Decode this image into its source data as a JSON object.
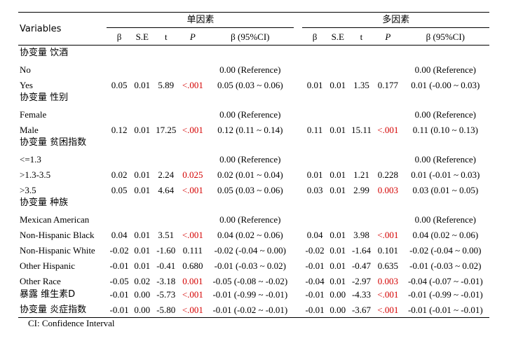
{
  "table": {
    "variables_header": "Variables",
    "group1_label": "单因素",
    "group2_label": "多因素",
    "col_beta": "β",
    "col_se": "S.E",
    "col_t": "t",
    "col_p": "P",
    "col_ci": "β (95%CI)",
    "groups": [
      {
        "label": "协变量 饮酒",
        "rows": [
          {
            "label": "No",
            "u": {
              "b": "",
              "se": "",
              "t": "",
              "p": "",
              "ci": "0.00 (Reference)"
            },
            "m": {
              "b": "",
              "se": "",
              "t": "",
              "p": "",
              "ci": "0.00 (Reference)"
            }
          },
          {
            "label": "Yes",
            "u": {
              "b": "0.05",
              "se": "0.01",
              "t": "5.89",
              "p": "<.001",
              "ci": "0.05 (0.03 ~ 0.06)"
            },
            "m": {
              "b": "0.01",
              "se": "0.01",
              "t": "1.35",
              "p": "0.177",
              "ci": "0.01 (-0.00 ~ 0.03)"
            }
          }
        ]
      },
      {
        "label": "协变量 性别",
        "rows": [
          {
            "label": "Female",
            "u": {
              "b": "",
              "se": "",
              "t": "",
              "p": "",
              "ci": "0.00 (Reference)"
            },
            "m": {
              "b": "",
              "se": "",
              "t": "",
              "p": "",
              "ci": "0.00 (Reference)"
            }
          },
          {
            "label": "Male",
            "u": {
              "b": "0.12",
              "se": "0.01",
              "t": "17.25",
              "p": "<.001",
              "ci": "0.12 (0.11 ~ 0.14)"
            },
            "m": {
              "b": "0.11",
              "se": "0.01",
              "t": "15.11",
              "p": "<.001",
              "ci": "0.11 (0.10 ~ 0.13)"
            }
          }
        ]
      },
      {
        "label": "协变量 贫困指数",
        "rows": [
          {
            "label": "<=1.3",
            "u": {
              "b": "",
              "se": "",
              "t": "",
              "p": "",
              "ci": "0.00 (Reference)"
            },
            "m": {
              "b": "",
              "se": "",
              "t": "",
              "p": "",
              "ci": "0.00 (Reference)"
            }
          },
          {
            "label": ">1.3-3.5",
            "u": {
              "b": "0.02",
              "se": "0.01",
              "t": "2.24",
              "p": "0.025",
              "ci": "0.02 (0.01 ~ 0.04)"
            },
            "m": {
              "b": "0.01",
              "se": "0.01",
              "t": "1.21",
              "p": "0.228",
              "ci": "0.01 (-0.01 ~ 0.03)"
            }
          },
          {
            "label": ">3.5",
            "u": {
              "b": "0.05",
              "se": "0.01",
              "t": "4.64",
              "p": "<.001",
              "ci": "0.05 (0.03 ~ 0.06)"
            },
            "m": {
              "b": "0.03",
              "se": "0.01",
              "t": "2.99",
              "p": "0.003",
              "ci": "0.03 (0.01 ~ 0.05)"
            }
          }
        ]
      },
      {
        "label": "协变量 种族",
        "rows": [
          {
            "label": "Mexican American",
            "u": {
              "b": "",
              "se": "",
              "t": "",
              "p": "",
              "ci": "0.00 (Reference)"
            },
            "m": {
              "b": "",
              "se": "",
              "t": "",
              "p": "",
              "ci": "0.00 (Reference)"
            }
          },
          {
            "label": "Non-Hispanic Black",
            "u": {
              "b": "0.04",
              "se": "0.01",
              "t": "3.51",
              "p": "<.001",
              "ci": "0.04 (0.02 ~ 0.06)"
            },
            "m": {
              "b": "0.04",
              "se": "0.01",
              "t": "3.98",
              "p": "<.001",
              "ci": "0.04 (0.02 ~ 0.06)"
            }
          },
          {
            "label": "Non-Hispanic White",
            "u": {
              "b": "-0.02",
              "se": "0.01",
              "t": "-1.60",
              "p": "0.111",
              "ci": "-0.02 (-0.04 ~ 0.00)"
            },
            "m": {
              "b": "-0.02",
              "se": "0.01",
              "t": "-1.64",
              "p": "0.101",
              "ci": "-0.02 (-0.04 ~ 0.00)"
            }
          },
          {
            "label": "Other Hispanic",
            "u": {
              "b": "-0.01",
              "se": "0.01",
              "t": "-0.41",
              "p": "0.680",
              "ci": "-0.01 (-0.03 ~ 0.02)"
            },
            "m": {
              "b": "-0.01",
              "se": "0.01",
              "t": "-0.47",
              "p": "0.635",
              "ci": "-0.01 (-0.03 ~ 0.02)"
            }
          },
          {
            "label": "Other Race",
            "u": {
              "b": "-0.05",
              "se": "0.02",
              "t": "-3.18",
              "p": "0.001",
              "ci": "-0.05 (-0.08 ~ -0.02)"
            },
            "m": {
              "b": "-0.04",
              "se": "0.01",
              "t": "-2.97",
              "p": "0.003",
              "ci": "-0.04 (-0.07 ~ -0.01)"
            }
          }
        ]
      }
    ],
    "singles": [
      {
        "label": "暴露 维生素D",
        "u": {
          "b": "-0.01",
          "se": "0.00",
          "t": "-5.73",
          "p": "<.001",
          "ci": "-0.01 (-0.99 ~ -0.01)"
        },
        "m": {
          "b": "-0.01",
          "se": "0.00",
          "t": "-4.33",
          "p": "<.001",
          "ci": "-0.01 (-0.99 ~ -0.01)"
        }
      },
      {
        "label": "协变量 炎症指数",
        "u": {
          "b": "-0.01",
          "se": "0.00",
          "t": "-5.80",
          "p": "<.001",
          "ci": "-0.01 (-0.02 ~ -0.01)"
        },
        "m": {
          "b": "-0.01",
          "se": "0.00",
          "t": "-3.67",
          "p": "<.001",
          "ci": "-0.01 (-0.01 ~ -0.01)"
        }
      }
    ],
    "significant_color": "#d40000"
  },
  "footnote": "CI: Confidence Interval"
}
